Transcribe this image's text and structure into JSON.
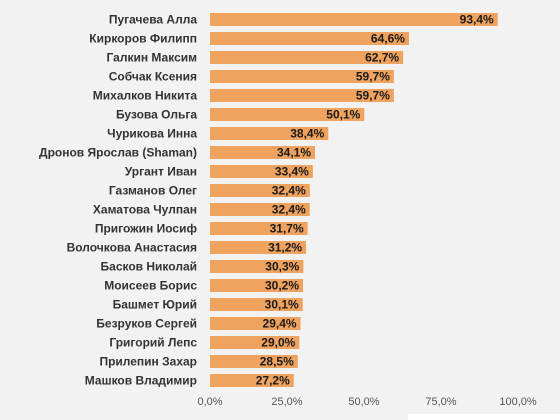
{
  "colors": {
    "bar": "#f0a35e",
    "background": "#f2f2f2",
    "text": "#333333",
    "axis_text": "#555555"
  },
  "chart_data": {
    "type": "bar",
    "orientation": "horizontal",
    "categories": [
      "Пугачева Алла",
      "Киркоров Филипп",
      "Галкин Максим",
      "Собчак Ксения",
      "Михалков Никита",
      "Бузова Ольга",
      "Чурикова Инна",
      "Дронов Ярослав (Shaman)",
      "Ургант Иван",
      "Газманов Олег",
      "Хаматова Чулпан",
      "Пригожин Иосиф",
      "Волочкова Анастасия",
      "Басков Николай",
      "Моисеев Борис",
      "Башмет Юрий",
      "Безруков Сергей",
      "Григорий Лепс",
      "Прилепин Захар",
      "Машков Владимир"
    ],
    "values": [
      93.4,
      64.6,
      62.7,
      59.7,
      59.7,
      50.1,
      38.4,
      34.1,
      33.4,
      32.4,
      32.4,
      31.7,
      31.2,
      30.3,
      30.2,
      30.1,
      29.4,
      29.0,
      28.5,
      27.2
    ],
    "value_labels": [
      "93,4%",
      "64,6%",
      "62,7%",
      "59,7%",
      "59,7%",
      "50,1%",
      "38,4%",
      "34,1%",
      "33,4%",
      "32,4%",
      "32,4%",
      "31,7%",
      "31,2%",
      "30,3%",
      "30,2%",
      "30,1%",
      "29,4%",
      "29,0%",
      "28,5%",
      "27,2%"
    ],
    "xlim": [
      0,
      100
    ],
    "ticks": [
      0,
      25,
      50,
      75,
      100
    ],
    "tick_labels": [
      "0,0%",
      "25,0%",
      "50,0%",
      "75,0%",
      "100,0%"
    ],
    "grid": false,
    "legend": "none",
    "title": "",
    "xlabel": "",
    "ylabel": ""
  }
}
